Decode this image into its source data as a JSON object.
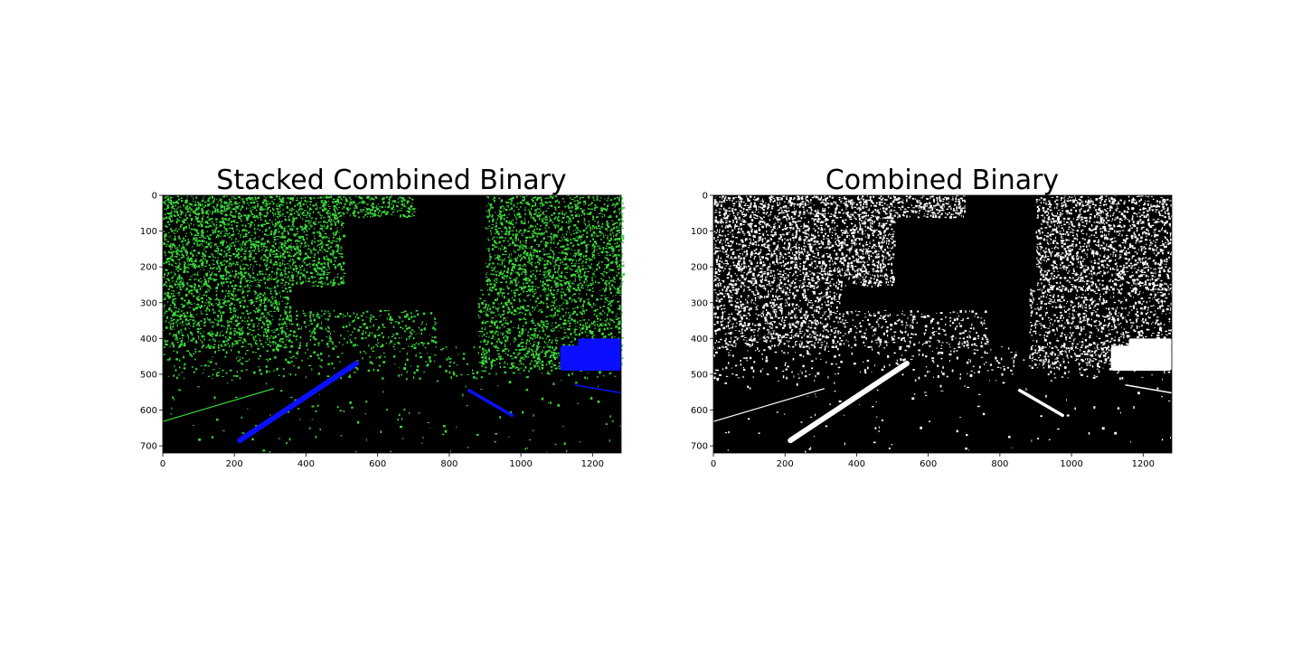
{
  "chart_data": [
    {
      "type": "image",
      "title": "Stacked Combined Binary",
      "xlabel": "",
      "ylabel": "",
      "xlim": [
        0,
        1280
      ],
      "ylim": [
        720,
        0
      ],
      "xticks": [
        0,
        200,
        400,
        600,
        800,
        1000,
        1200
      ],
      "yticks": [
        0,
        100,
        200,
        300,
        400,
        500,
        600,
        700
      ],
      "colors": {
        "background": "#000000",
        "channel_a": "#3ad63a",
        "channel_b": "#0a10ff"
      },
      "lane_lines": [
        {
          "name": "",
          "points": [
            [
              215,
              685
            ],
            [
              540,
              470
            ]
          ],
          "color": "#0a10ff"
        },
        {
          "name": "",
          "points": [
            [
              855,
              545
            ],
            [
              975,
              615
            ]
          ],
          "color": "#0a10ff"
        }
      ]
    },
    {
      "type": "image",
      "title": "Combined Binary",
      "xlabel": "",
      "ylabel": "",
      "xlim": [
        0,
        1280
      ],
      "ylim": [
        720,
        0
      ],
      "xticks": [
        0,
        200,
        400,
        600,
        800,
        1000,
        1200
      ],
      "yticks": [
        0,
        100,
        200,
        300,
        400,
        500,
        600,
        700
      ],
      "colors": {
        "background": "#000000",
        "foreground": "#ffffff"
      },
      "lane_lines": [
        {
          "name": "",
          "points": [
            [
              215,
              685
            ],
            [
              540,
              470
            ]
          ],
          "color": "#ffffff"
        },
        {
          "name": "",
          "points": [
            [
              855,
              545
            ],
            [
              975,
              615
            ]
          ],
          "color": "#ffffff"
        }
      ]
    }
  ]
}
